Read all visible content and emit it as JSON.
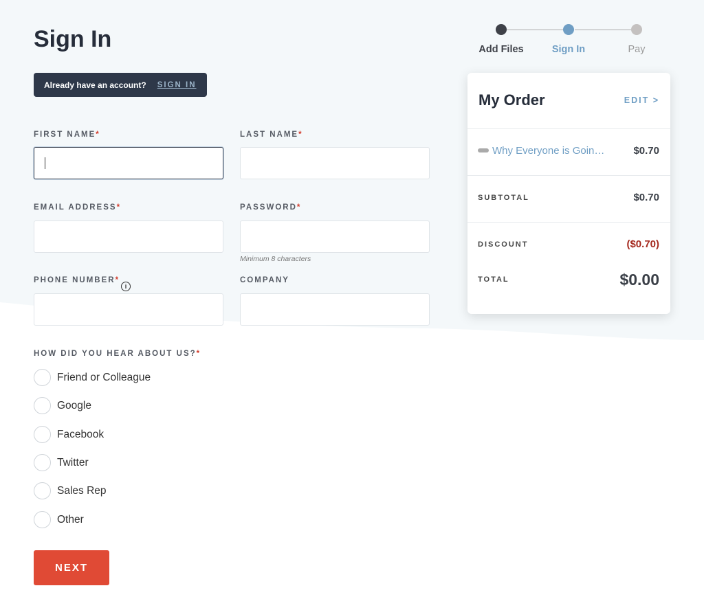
{
  "page_title": "Sign In",
  "banner": {
    "text": "Already have an account?",
    "link": "SIGN IN"
  },
  "form": {
    "first_name": {
      "label": "FIRST NAME",
      "value": ""
    },
    "last_name": {
      "label": "LAST NAME",
      "value": ""
    },
    "email": {
      "label": "EMAIL ADDRESS",
      "value": ""
    },
    "password": {
      "label": "PASSWORD",
      "value": "",
      "hint": "Minimum 8 characters"
    },
    "phone": {
      "label": "PHONE NUMBER",
      "value": ""
    },
    "company": {
      "label": "COMPANY",
      "value": ""
    },
    "required_mark": "*",
    "info_icon": "i",
    "hear_about": {
      "label": "HOW DID YOU HEAR ABOUT US?",
      "options": [
        "Friend or Colleague",
        "Google",
        "Facebook",
        "Twitter",
        "Sales Rep",
        "Other"
      ]
    },
    "next_label": "NEXT"
  },
  "steps": [
    {
      "label": "Add Files",
      "state": "done"
    },
    {
      "label": "Sign In",
      "state": "current"
    },
    {
      "label": "Pay",
      "state": "pending"
    }
  ],
  "order": {
    "title": "My Order",
    "edit": "EDIT >",
    "item": {
      "name": "Why Everyone is Goin…",
      "price": "$0.70"
    },
    "subtotal_label": "SUBTOTAL",
    "subtotal": "$0.70",
    "discount_label": "DISCOUNT",
    "discount": "($0.70)",
    "total_label": "TOTAL",
    "total": "$0.00"
  },
  "colors": {
    "accent": "#e04a35",
    "step_current": "#6f9ec4",
    "link": "#6f9ec4",
    "discount": "#a52a1f",
    "banner": "#2e3849"
  }
}
